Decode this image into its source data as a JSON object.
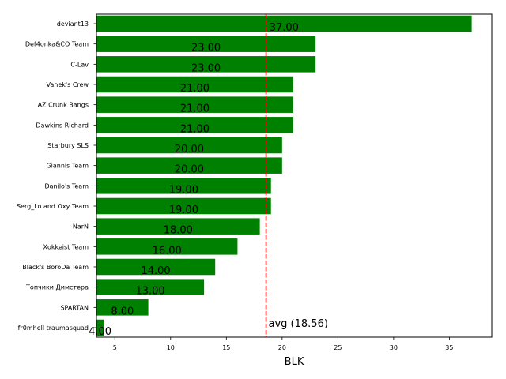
{
  "chart_data": {
    "type": "bar",
    "orientation": "horizontal",
    "categories": [
      "deviant13",
      "Def4onka&CO Team",
      "C-Lav",
      "Vanek's Crew",
      "AZ Crunk Bangs",
      "Dawkins Richard",
      "Starbury SLS",
      "Giannis Team",
      "Danilo's Team",
      "Serg_Lo and Oxy Team",
      "NarN",
      "Xokkeist Team",
      "Black's BoroDa Team",
      "Топчики Димстера",
      "SPARTAN",
      "fr0mhell traumasquad"
    ],
    "values": [
      37,
      23,
      23,
      21,
      21,
      21,
      20,
      20,
      19,
      19,
      18,
      16,
      14,
      13,
      8,
      4
    ],
    "value_labels": [
      "37.00",
      "23.00",
      "23.00",
      "21.00",
      "21.00",
      "21.00",
      "20.00",
      "20.00",
      "19.00",
      "19.00",
      "18.00",
      "16.00",
      "14.00",
      "13.00",
      "8.00",
      "4.00"
    ],
    "xlabel": "BLK",
    "ylabel": "",
    "title": "",
    "xlim": [
      3.35,
      38.8
    ],
    "xticks": [
      5,
      10,
      15,
      20,
      25,
      30,
      35
    ],
    "bar_color": "#008000",
    "average": {
      "value": 18.56,
      "label": "avg (18.56)",
      "color": "#dd0000",
      "style": "dashed"
    },
    "grid": false,
    "legend": "none"
  }
}
